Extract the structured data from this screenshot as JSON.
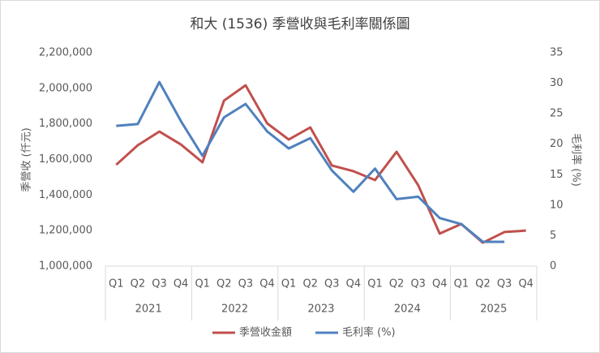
{
  "chart_data": {
    "type": "line",
    "title": "和大 (1536) 季營收與毛利率關係圖",
    "ylabel": "季營收 (仟元)",
    "y2label": "毛利率 (%)",
    "categories": [
      "Q1",
      "Q2",
      "Q3",
      "Q4",
      "Q1",
      "Q2",
      "Q3",
      "Q4",
      "Q1",
      "Q2",
      "Q3",
      "Q4",
      "Q1",
      "Q2",
      "Q3",
      "Q4",
      "Q1",
      "Q2",
      "Q3",
      "Q4"
    ],
    "category_groups": [
      "2021",
      "2022",
      "2023",
      "2024",
      "2025"
    ],
    "series": [
      {
        "name": "季營收金額",
        "color": "#c0504d",
        "axis": "y",
        "values": [
          1570000,
          1680000,
          1757000,
          1684000,
          1584000,
          1931000,
          2017000,
          1803000,
          1712000,
          1780000,
          1566000,
          1534000,
          1484000,
          1643000,
          1456000,
          1183000,
          1237000,
          1132000,
          1192000,
          1200000
        ]
      },
      {
        "name": "毛利率 (%)",
        "color": "#4f81bd",
        "axis": "y2",
        "values": [
          23.0,
          23.3,
          30.2,
          23.8,
          18.1,
          24.4,
          26.6,
          22.1,
          19.3,
          21.0,
          15.7,
          12.2,
          16.0,
          11.0,
          11.4,
          7.9,
          6.9,
          4.0,
          4.0,
          null
        ]
      }
    ],
    "ylim": [
      1000000,
      2200000
    ],
    "yticks": [
      {
        "value": 1000000,
        "label": "1,000,000"
      },
      {
        "value": 1200000,
        "label": "1,200,000"
      },
      {
        "value": 1400000,
        "label": "1,400,000"
      },
      {
        "value": 1600000,
        "label": "1,600,000"
      },
      {
        "value": 1800000,
        "label": "1,800,000"
      },
      {
        "value": 2000000,
        "label": "2,000,000"
      },
      {
        "value": 2200000,
        "label": "2,200,000"
      }
    ],
    "y2lim": [
      0,
      35
    ],
    "y2ticks": [
      0,
      5,
      10,
      15,
      20,
      25,
      30,
      35
    ],
    "legend": "bottom"
  }
}
